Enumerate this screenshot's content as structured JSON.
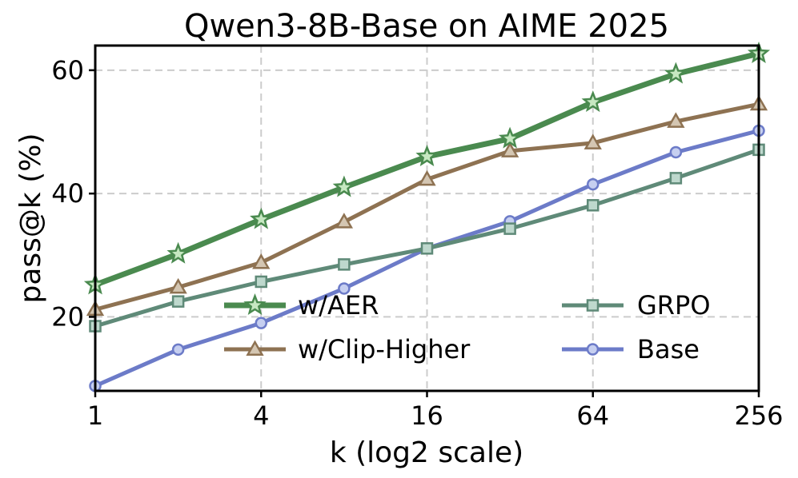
{
  "chart_data": {
    "type": "line",
    "title": "Qwen3-8B-Base on AIME 2025",
    "xlabel": "k (log2 scale)",
    "ylabel": "pass@k (%)",
    "x_scale": "log2",
    "xlim": [
      1,
      256
    ],
    "ylim": [
      8,
      64
    ],
    "x_ticks": [
      1,
      4,
      16,
      64,
      256
    ],
    "x_tick_labels": [
      "1",
      "4",
      "16",
      "64",
      "256"
    ],
    "y_ticks": [
      20,
      40,
      60
    ],
    "y_tick_labels": [
      "20",
      "40",
      "60"
    ],
    "grid": true,
    "legend_position": "lower-right",
    "x": [
      1,
      2,
      4,
      8,
      16,
      32,
      64,
      128,
      256
    ],
    "series": [
      {
        "name": "w/AER",
        "marker": "star",
        "color": "#4a8a4f",
        "marker_fill": "#c6e8c1",
        "width": 7,
        "values": [
          25.2,
          30.2,
          35.8,
          41.0,
          46.0,
          48.9,
          54.8,
          59.4,
          62.7
        ]
      },
      {
        "name": "w/Clip-Higher",
        "marker": "triangle",
        "color": "#8e7252",
        "marker_fill": "#d4c6b2",
        "width": 5,
        "values": [
          21.2,
          24.8,
          28.8,
          35.4,
          42.3,
          46.9,
          48.2,
          51.7,
          54.5
        ]
      },
      {
        "name": "GRPO",
        "marker": "square",
        "color": "#5f8a78",
        "marker_fill": "#bed8cd",
        "width": 5,
        "values": [
          18.5,
          22.5,
          25.7,
          28.5,
          31.1,
          34.3,
          38.1,
          42.5,
          47.1
        ]
      },
      {
        "name": "Base",
        "marker": "circle",
        "color": "#6c7bc8",
        "marker_fill": "#c6cff0",
        "width": 5,
        "values": [
          8.8,
          14.7,
          19.0,
          24.6,
          31.1,
          35.5,
          41.5,
          46.7,
          50.2
        ]
      }
    ]
  }
}
